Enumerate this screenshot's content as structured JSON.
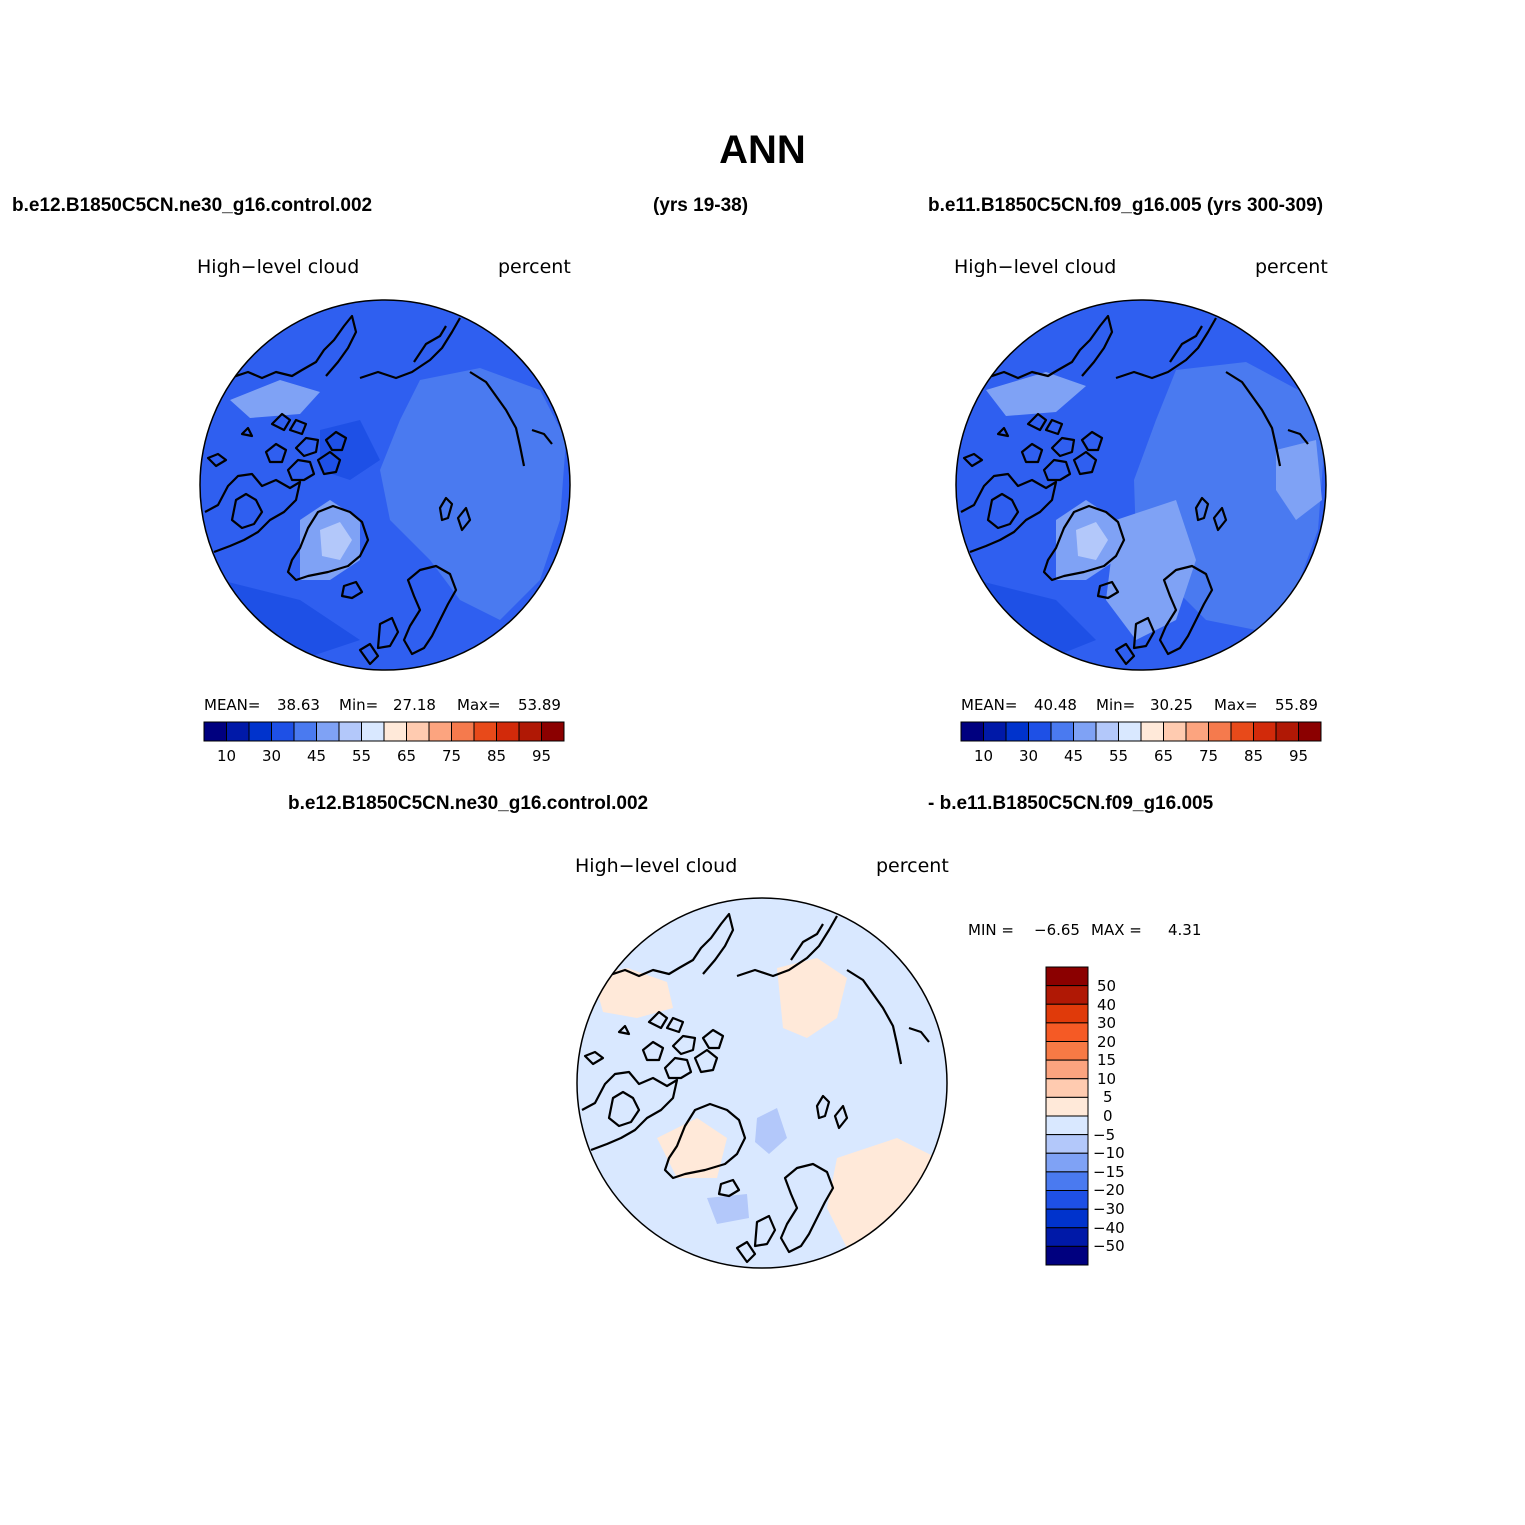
{
  "figure": {
    "title": "ANN",
    "header_left": "b.e12.B1850C5CN.ne30_g16.control.002",
    "header_left_years": "(yrs 19-38)",
    "header_right": "b.e11.B1850C5CN.f09_g16.005 (yrs 300-309)",
    "diff_header_left": "b.e12.B1850C5CN.ne30_g16.control.002",
    "diff_header_right": "- b.e11.B1850C5CN.f09_g16.005"
  },
  "panels": [
    {
      "variable": "High−level cloud",
      "units": "percent",
      "mean_label": "MEAN=",
      "mean": "38.63",
      "min_label": "Min=",
      "min": "27.18",
      "max_label": "Max=",
      "max": "53.89",
      "colorbar": {
        "ticks": [
          "10",
          "30",
          "45",
          "55",
          "65",
          "75",
          "85",
          "95"
        ],
        "colors": [
          "#00007f",
          "#0019a8",
          "#0033cc",
          "#1e50e6",
          "#4a7af0",
          "#7fa2f5",
          "#b3c8fa",
          "#d9e8ff",
          "#ffe9d9",
          "#ffcbb0",
          "#fca47f",
          "#f57a4d",
          "#e84a1a",
          "#d22a0a",
          "#b01805",
          "#8b0000"
        ]
      }
    },
    {
      "variable": "High−level cloud",
      "units": "percent",
      "mean_label": "MEAN=",
      "mean": "40.48",
      "min_label": "Min=",
      "min": "30.25",
      "max_label": "Max=",
      "max": "55.89",
      "colorbar": {
        "ticks": [
          "10",
          "30",
          "45",
          "55",
          "65",
          "75",
          "85",
          "95"
        ],
        "colors": [
          "#00007f",
          "#0019a8",
          "#0033cc",
          "#1e50e6",
          "#4a7af0",
          "#7fa2f5",
          "#b3c8fa",
          "#d9e8ff",
          "#ffe9d9",
          "#ffcbb0",
          "#fca47f",
          "#f57a4d",
          "#e84a1a",
          "#d22a0a",
          "#b01805",
          "#8b0000"
        ]
      }
    },
    {
      "variable": "High−level cloud",
      "units": "percent",
      "min_label": "MIN =",
      "min": "−6.65",
      "max_label": "MAX =",
      "max": "4.31",
      "colorbar": {
        "ticks": [
          "50",
          "40",
          "30",
          "20",
          "15",
          "10",
          "5",
          "0",
          "−5",
          "−10",
          "−15",
          "−20",
          "−30",
          "−40",
          "−50"
        ],
        "colors": [
          "#8b0000",
          "#b01805",
          "#e03a0a",
          "#f55a25",
          "#f77a45",
          "#fca47f",
          "#ffcbb0",
          "#ffe9d9",
          "#d9e8ff",
          "#b3c8fa",
          "#7fa2f5",
          "#4a7af0",
          "#1e50e6",
          "#0033cc",
          "#0019a8",
          "#00007f"
        ]
      }
    }
  ]
}
